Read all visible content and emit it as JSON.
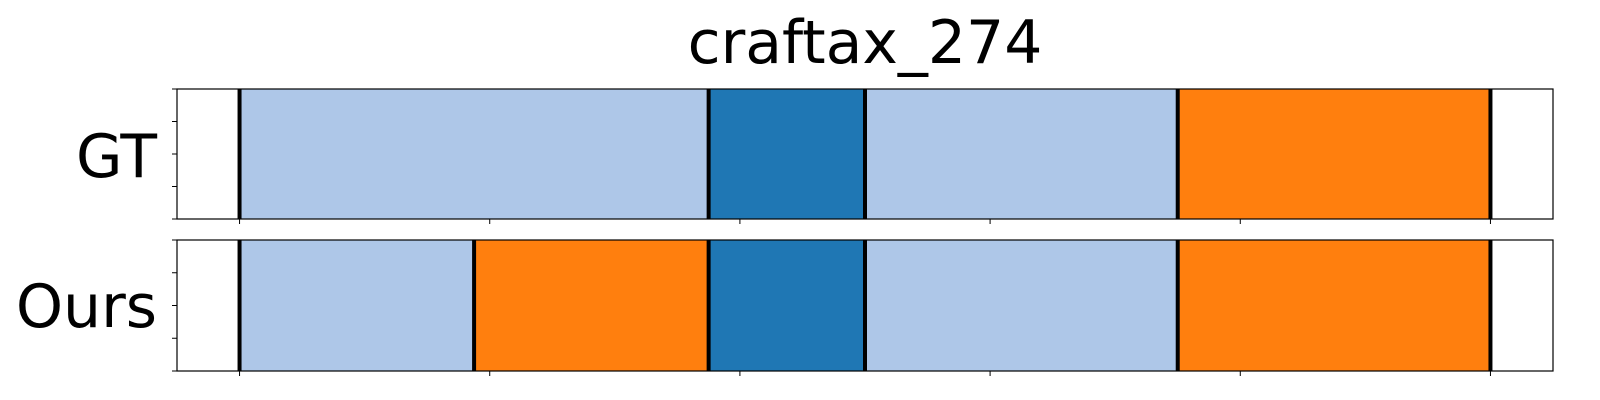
{
  "chart_data": {
    "type": "segmentation",
    "title": "craftax_274",
    "xlim": [
      0,
      22
    ],
    "x_ticks": [
      1,
      5,
      9,
      13,
      17,
      21
    ],
    "y_ticks": [
      0,
      0.25,
      0.5,
      0.75,
      1
    ],
    "colors": {
      "light_blue": "#aec7e8",
      "blue": "#1f77b4",
      "orange": "#ff7f0e",
      "boundary": "#000000"
    },
    "rows": [
      {
        "label": "GT",
        "segments": [
          {
            "start": 1,
            "end": 8.5,
            "color": "light_blue"
          },
          {
            "start": 8.5,
            "end": 11,
            "color": "blue"
          },
          {
            "start": 11,
            "end": 16,
            "color": "light_blue"
          },
          {
            "start": 16,
            "end": 21,
            "color": "orange"
          }
        ],
        "boundaries": [
          1,
          8.5,
          11,
          16,
          21
        ]
      },
      {
        "label": "Ours",
        "segments": [
          {
            "start": 1,
            "end": 4.75,
            "color": "light_blue"
          },
          {
            "start": 4.75,
            "end": 8.5,
            "color": "orange"
          },
          {
            "start": 8.5,
            "end": 11,
            "color": "blue"
          },
          {
            "start": 11,
            "end": 16,
            "color": "light_blue"
          },
          {
            "start": 16,
            "end": 21,
            "color": "orange"
          }
        ],
        "boundaries": [
          1,
          4.75,
          8.5,
          11,
          16,
          21
        ]
      }
    ]
  }
}
